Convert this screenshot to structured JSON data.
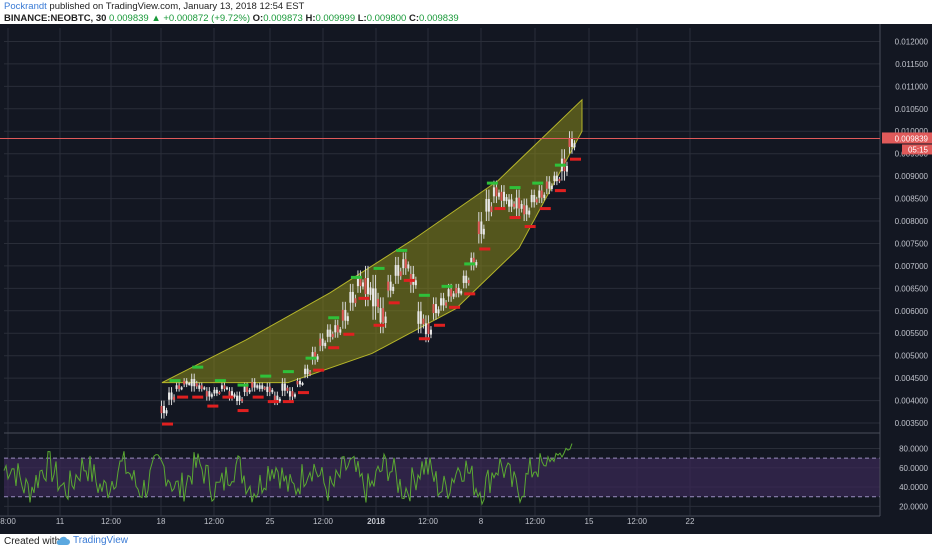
{
  "header": {
    "author": "Pockrandt",
    "published_text": " published on TradingView.com, January 13, 2018 12:54 EST",
    "symbol": "BINANCE:NEOBTC, 30",
    "last": "0.009839",
    "change": "+0.000872 (+9.72%)",
    "o_label": "O:",
    "o_value": "0.009873",
    "h_label": "H:",
    "h_value": "0.009999",
    "l_label": "L:",
    "l_value": "0.009800",
    "c_label": "C:",
    "c_value": "0.009839"
  },
  "price_axis": {
    "labels": [
      "0.012000",
      "0.011500",
      "0.011000",
      "0.010500",
      "0.010000",
      "0.009500",
      "0.009000",
      "0.008500",
      "0.008000",
      "0.007500",
      "0.007000",
      "0.006500",
      "0.006000",
      "0.005500",
      "0.005000",
      "0.004500",
      "0.004000",
      "0.003500"
    ],
    "current_price": "0.009839",
    "countdown": "05:15"
  },
  "rsi_axis": {
    "labels": [
      "80.0000",
      "60.0000",
      "40.0000",
      "20.0000"
    ]
  },
  "time_axis": {
    "labels": [
      "8:00",
      "11",
      "12:00",
      "18",
      "12:00",
      "25",
      "12:00",
      "2018",
      "12:00",
      "8",
      "12:00",
      "15",
      "12:00",
      "22"
    ]
  },
  "footer": {
    "created_with": "Created with",
    "brand": "TradingView"
  },
  "colors": {
    "background": "#131722",
    "grid": "#2a2e39",
    "channel_fill": "#8a8a1a",
    "price_line": "#e05a5a",
    "rsi_line": "#5aa832",
    "rsi_band": "#3a2a55",
    "buy_label": "#2fc03a",
    "sell_label": "#e02020"
  },
  "chart_data": {
    "type": "line",
    "symbol": "BINANCE:NEOBTC",
    "timeframe": "30",
    "ylim": [
      0.0033,
      0.0123
    ],
    "yticks": [
      0.0035,
      0.004,
      0.0045,
      0.005,
      0.0055,
      0.006,
      0.0065,
      0.007,
      0.0075,
      0.008,
      0.0085,
      0.009,
      0.0095,
      0.01,
      0.0105,
      0.011,
      0.0115,
      0.012
    ],
    "price_path": [
      [
        0.004,
        0.0036
      ],
      [
        0.0043,
        0.0039
      ],
      [
        0.0044,
        0.0042
      ],
      [
        0.0045,
        0.0043
      ],
      [
        0.0046,
        0.0042
      ],
      [
        0.0044,
        0.0042
      ],
      [
        0.0043,
        0.004
      ],
      [
        0.0043,
        0.0041
      ],
      [
        0.0044,
        0.0042
      ],
      [
        0.0043,
        0.004
      ],
      [
        0.0042,
        0.0039
      ],
      [
        0.0044,
        0.0041
      ],
      [
        0.0045,
        0.0042
      ],
      [
        0.0044,
        0.0042
      ],
      [
        0.0044,
        0.0041
      ],
      [
        0.0042,
        0.0039
      ],
      [
        0.0045,
        0.0041
      ],
      [
        0.0043,
        0.004
      ],
      [
        0.0045,
        0.0043
      ],
      [
        0.0048,
        0.0045
      ],
      [
        0.0052,
        0.0048
      ],
      [
        0.0055,
        0.0051
      ],
      [
        0.0057,
        0.0053
      ],
      [
        0.0058,
        0.0054
      ],
      [
        0.0062,
        0.0056
      ],
      [
        0.0066,
        0.006
      ],
      [
        0.0069,
        0.0064
      ],
      [
        0.007,
        0.0061
      ],
      [
        0.0068,
        0.0058
      ],
      [
        0.0063,
        0.0055
      ],
      [
        0.0068,
        0.0063
      ],
      [
        0.0072,
        0.0066
      ],
      [
        0.0073,
        0.0068
      ],
      [
        0.007,
        0.0064
      ],
      [
        0.0062,
        0.0055
      ],
      [
        0.0059,
        0.0053
      ],
      [
        0.0063,
        0.0058
      ],
      [
        0.0064,
        0.006
      ],
      [
        0.0066,
        0.0062
      ],
      [
        0.0066,
        0.0063
      ],
      [
        0.0069,
        0.0065
      ],
      [
        0.0073,
        0.0069
      ],
      [
        0.0082,
        0.0075
      ],
      [
        0.0087,
        0.008
      ],
      [
        0.0089,
        0.0084
      ],
      [
        0.0088,
        0.0083
      ],
      [
        0.0086,
        0.0082
      ],
      [
        0.0087,
        0.0081
      ],
      [
        0.0085,
        0.008
      ],
      [
        0.0087,
        0.0083
      ],
      [
        0.0088,
        0.0084
      ],
      [
        0.009,
        0.0086
      ],
      [
        0.0091,
        0.0088
      ],
      [
        0.0096,
        0.0089
      ],
      [
        0.01,
        0.0095
      ]
    ],
    "channel_upper": [
      [
        0,
        0.0044
      ],
      [
        0.2,
        0.00535
      ],
      [
        0.4,
        0.0064
      ],
      [
        0.6,
        0.0076
      ],
      [
        0.8,
        0.0089
      ],
      [
        1,
        0.0107
      ]
    ],
    "channel_lower": [
      [
        0,
        0.0044
      ],
      [
        0.3,
        0.0044
      ],
      [
        0.5,
        0.00505
      ],
      [
        0.7,
        0.00605
      ],
      [
        0.85,
        0.0074
      ],
      [
        1,
        0.01
      ]
    ],
    "rsi_levels": [
      70,
      30
    ],
    "rsi_ylim": [
      10,
      95
    ]
  }
}
